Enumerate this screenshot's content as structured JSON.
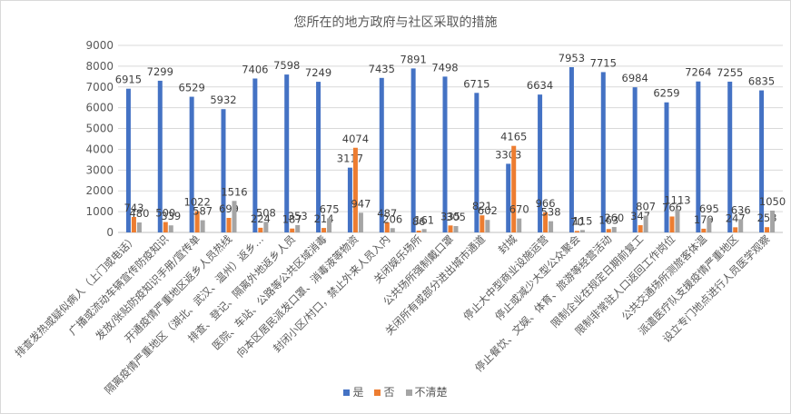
{
  "chart_data": {
    "type": "bar",
    "title": "您所在的地方政府与社区采取的措施",
    "ylim": [
      0,
      9000
    ],
    "yticks": [
      0,
      1000,
      2000,
      3000,
      4000,
      5000,
      6000,
      7000,
      8000,
      9000
    ],
    "grid": true,
    "legend_position": "bottom",
    "categories": [
      "排查发热或疑似病人（上门或电话）",
      "广播或流动车辆宣传防疫知识",
      "发放/张贴防疫知识手册/宣传单",
      "开通疫情严重地区返乡人员热线",
      "隔离疫情严重地区（湖北、武汉、温州）返乡…",
      "排查、登记、隔离外地返乡人员",
      "医院、车站、公路等公共区域消毒",
      "向本区居民派发口罩、消毒液等物资",
      "封闭小区/村口，禁止外来人员入内",
      "关闭娱乐场所",
      "公共场所强制戴口罩",
      "关闭所有或部分进出城市通道",
      "封城",
      "停止大中型商业设施运营",
      "停止或减少大型公众聚会",
      "停止餐饮、文娱、体育、旅游等经营活动",
      "限制企业在规定日期前复工",
      "限制非常驻人口返回工作岗位",
      "公共交通场所测旅客体温",
      "派遣医疗队支援疫情严重地区",
      "设立专门地点进行人员医学观察"
    ],
    "series": [
      {
        "name": "是",
        "color": "#4472c4",
        "values": [
          6915,
          7299,
          6529,
          5932,
          7406,
          7598,
          7249,
          3117,
          7435,
          7891,
          7498,
          6715,
          3303,
          6634,
          7953,
          7715,
          6984,
          6259,
          7264,
          7255,
          6835
        ]
      },
      {
        "name": "否",
        "color": "#ed7d31",
        "values": [
          743,
          500,
          1022,
          699,
          224,
          187,
          214,
          4074,
          487,
          86,
          335,
          821,
          4165,
          966,
          70,
          163,
          347,
          766,
          179,
          247,
          253
        ]
      },
      {
        "name": "不清楚",
        "color": "#a5a5a5",
        "values": [
          480,
          339,
          587,
          1516,
          508,
          353,
          675,
          947,
          206,
          161,
          305,
          602,
          670,
          538,
          115,
          260,
          807,
          1113,
          695,
          636,
          1050
        ]
      }
    ]
  }
}
